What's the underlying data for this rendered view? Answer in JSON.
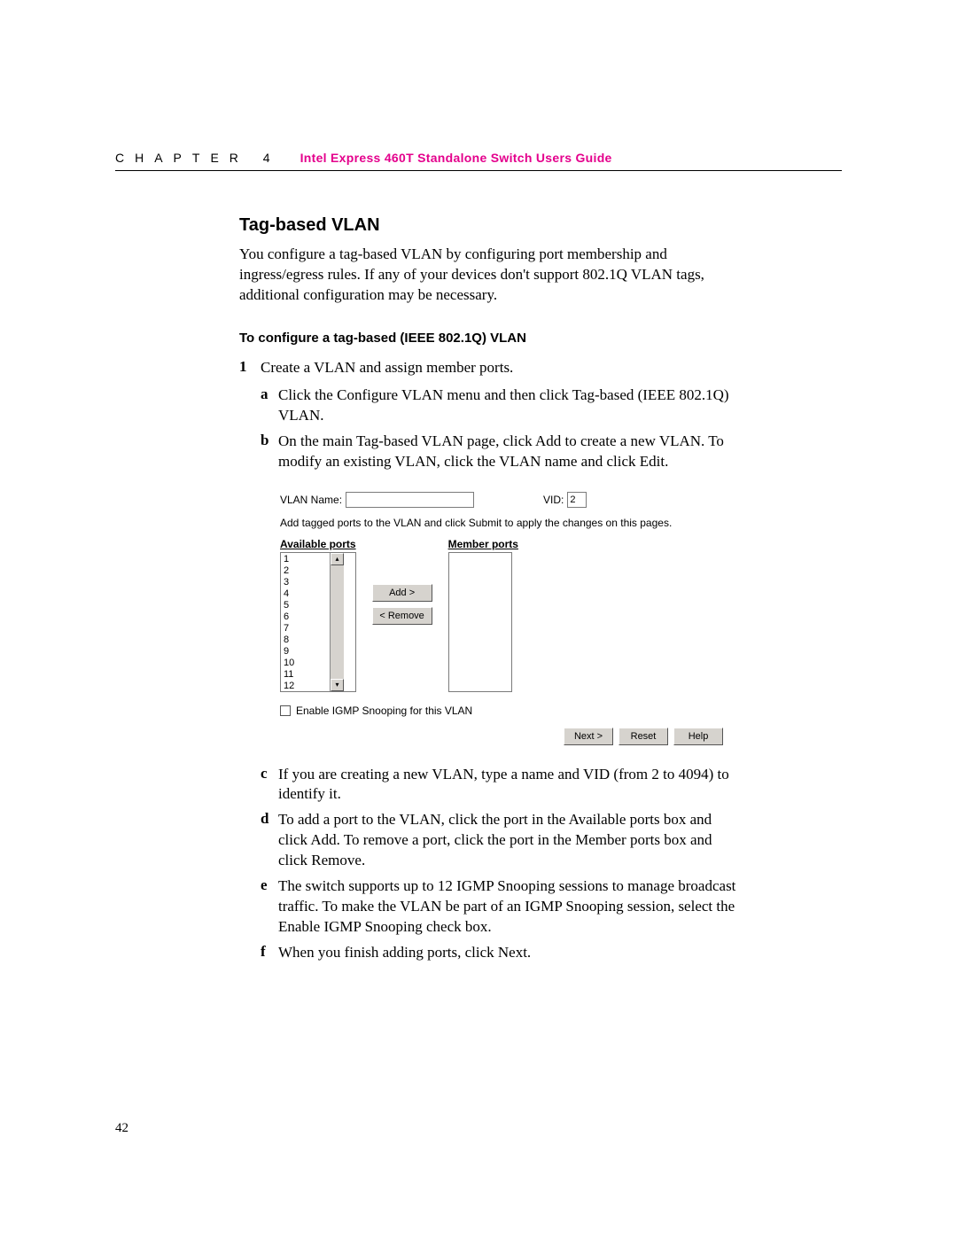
{
  "header": {
    "chapter": "CHAPTER 4",
    "guide_title": "Intel Express 460T Standalone Switch Users Guide"
  },
  "section": {
    "title": "Tag-based VLAN",
    "intro": "You configure a tag-based VLAN by configuring port membership and ingress/egress rules. If any of your devices don't support 802.1Q VLAN tags, additional configuration may be necessary.",
    "subheading": "To configure a tag-based (IEEE 802.1Q) VLAN",
    "step1_num": "1",
    "step1_text": "Create a VLAN and assign member ports.",
    "sub_a_letter": "a",
    "sub_a_text": "Click the Configure VLAN menu and then click Tag-based (IEEE 802.1Q) VLAN.",
    "sub_b_letter": "b",
    "sub_b_text": "On the main Tag-based VLAN page, click Add to create a new VLAN. To modify an existing VLAN, click the VLAN name and click Edit.",
    "sub_c_letter": "c",
    "sub_c_text": "If you are creating a new VLAN, type a name and VID (from 2 to 4094) to identify it.",
    "sub_d_letter": "d",
    "sub_d_text": "To add a port to the VLAN, click the port in the Available ports box and click Add. To remove a port, click the port in the Member ports box and click Remove.",
    "sub_e_letter": "e",
    "sub_e_text": "The switch supports up to 12 IGMP Snooping sessions to manage broadcast traffic. To make the VLAN be part of an IGMP Snooping session, select the Enable IGMP Snooping check box.",
    "sub_f_letter": "f",
    "sub_f_text": "When you finish adding ports, click Next."
  },
  "ui": {
    "vlan_name_label": "VLAN Name:",
    "vlan_name_value": "",
    "vid_label": "VID:",
    "vid_value": "2",
    "instruction": "Add tagged ports to the VLAN and click Submit to apply the changes on this pages.",
    "available_title": "Available ports",
    "member_title": "Member ports",
    "ports": [
      "1",
      "2",
      "3",
      "4",
      "5",
      "6",
      "7",
      "8",
      "9",
      "10",
      "11",
      "12"
    ],
    "add_btn": "Add >",
    "remove_btn": "< Remove",
    "checkbox_label": "Enable IGMP Snooping for this VLAN",
    "next_btn": "Next >",
    "reset_btn": "Reset",
    "help_btn": "Help",
    "scroll_up": "▴",
    "scroll_down": "▾"
  },
  "page_number": "42"
}
